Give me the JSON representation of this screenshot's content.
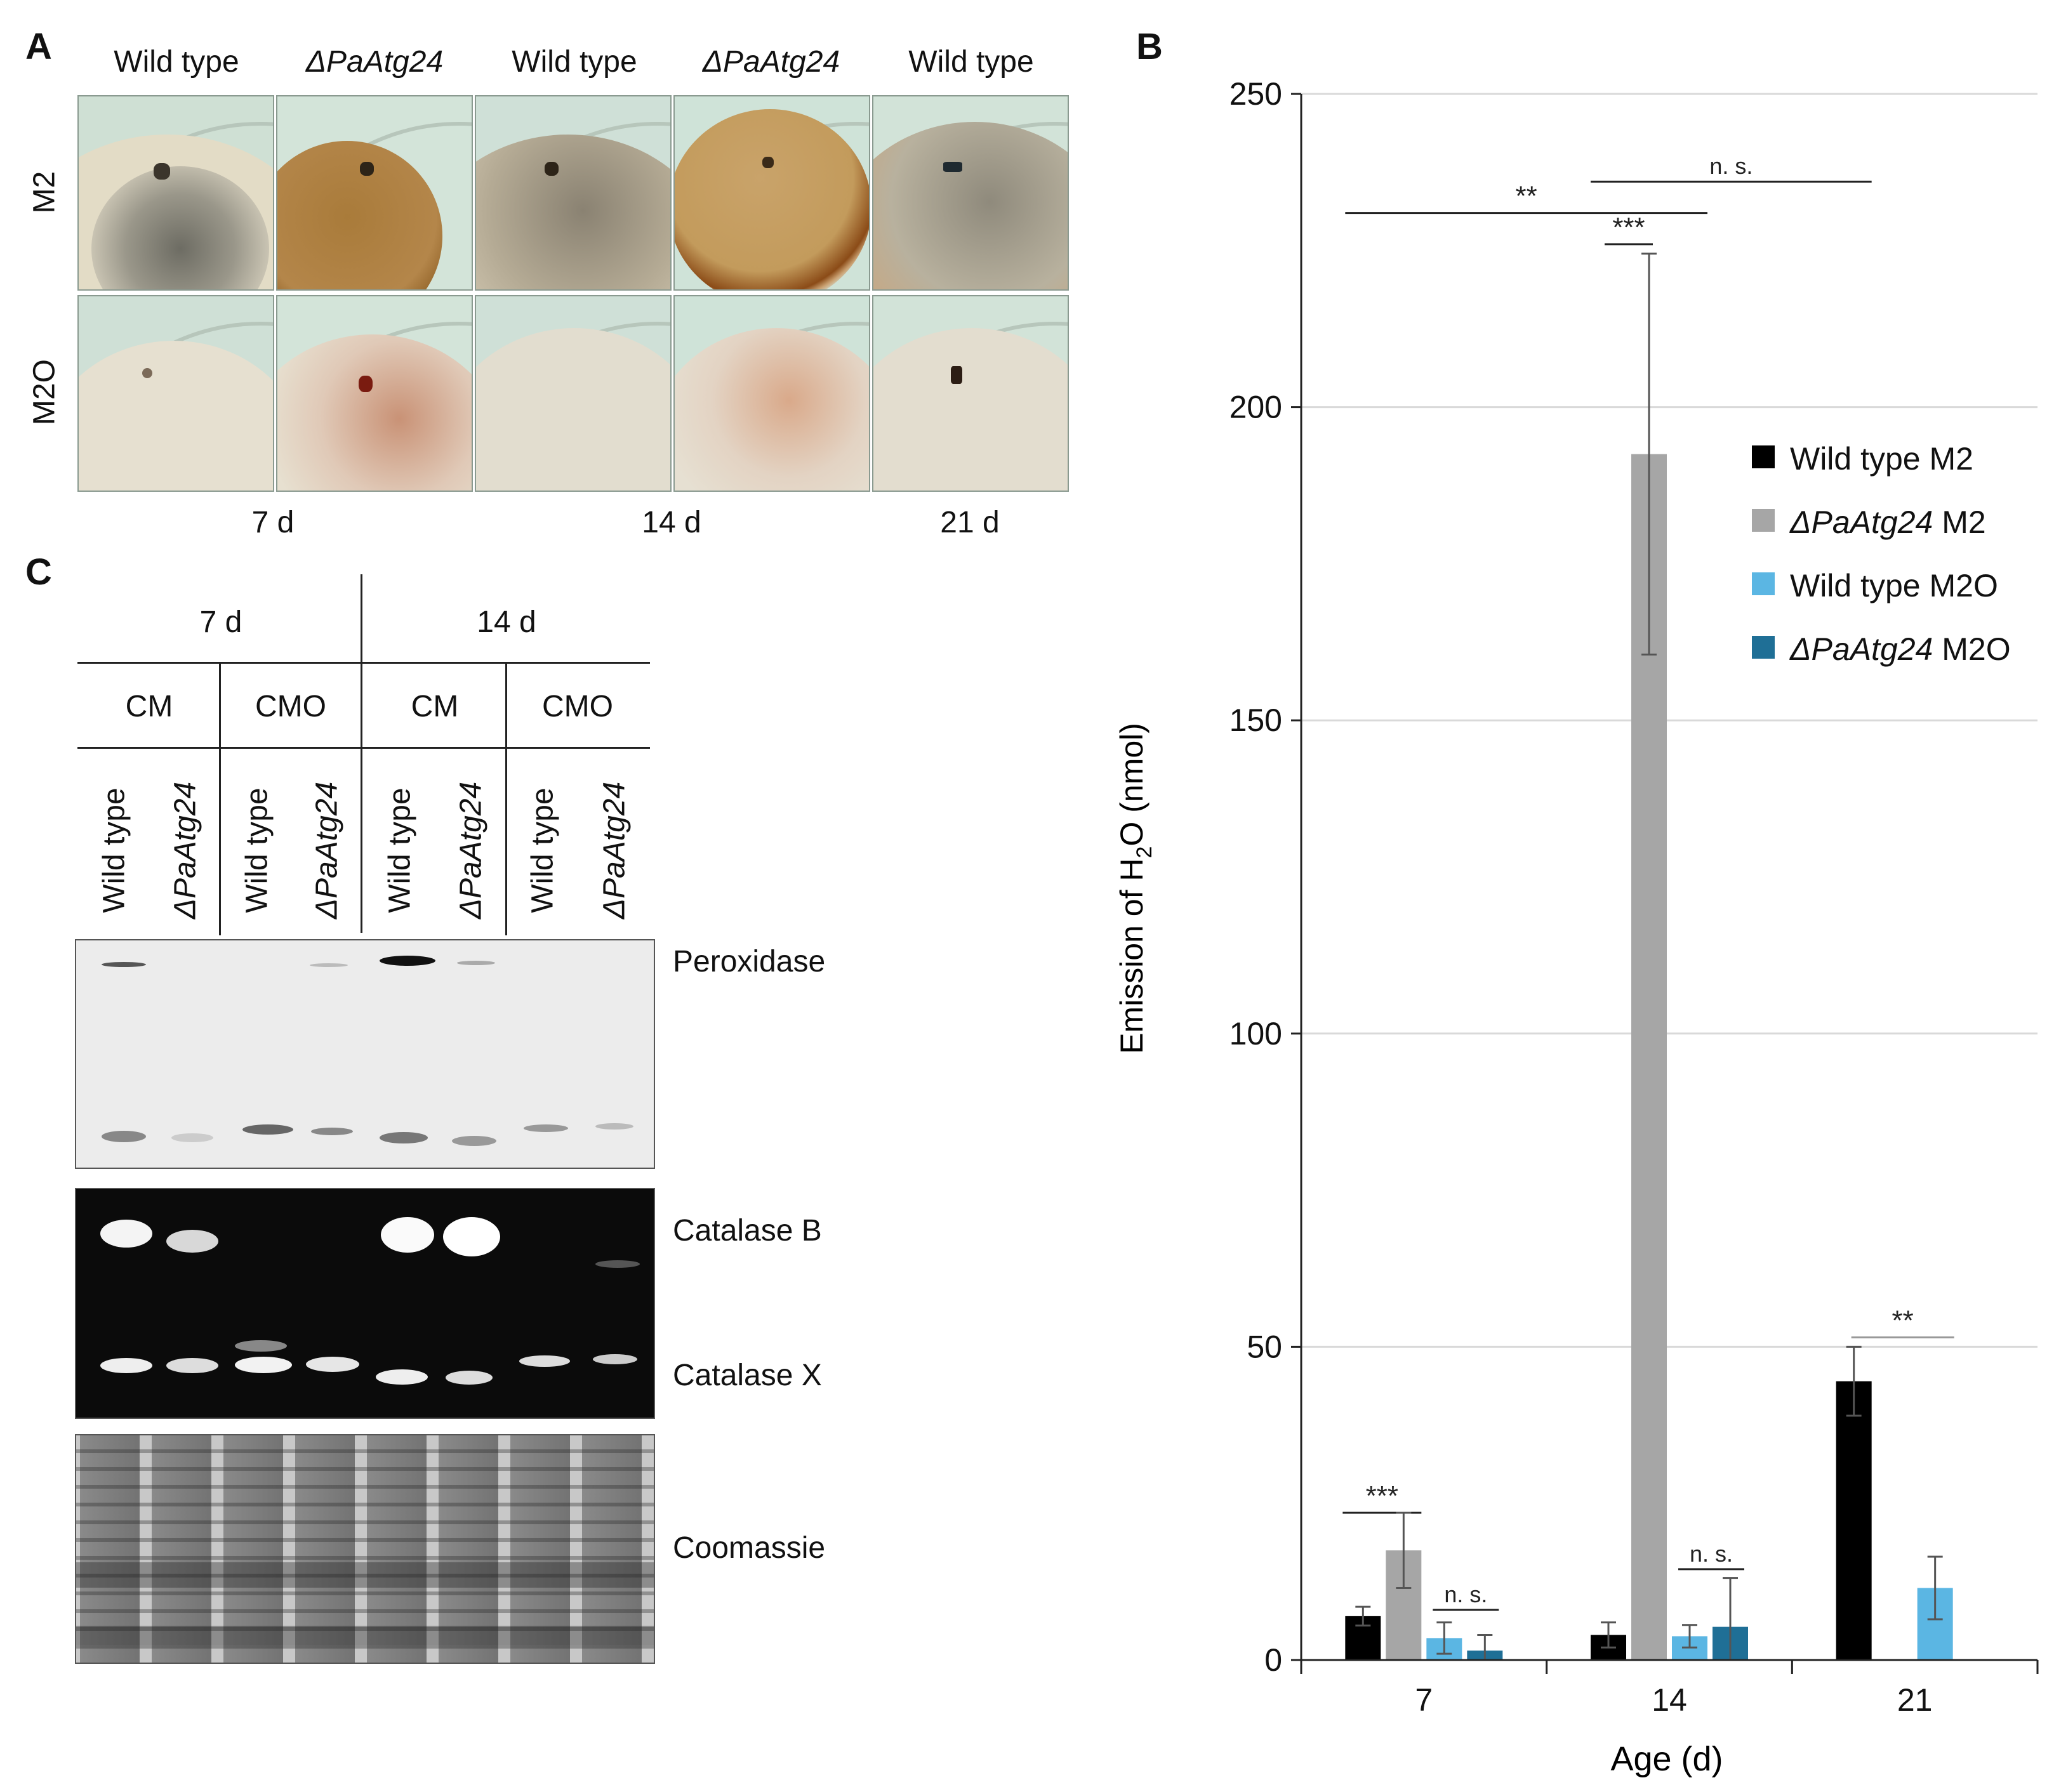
{
  "panel_labels": {
    "a": "A",
    "b": "B",
    "c": "C"
  },
  "panel_a": {
    "column_headers": [
      "Wild type",
      "ΔPaAtg24",
      "Wild type",
      "ΔPaAtg24",
      "Wild type"
    ],
    "row_labels": [
      "M2",
      "M2O"
    ],
    "time_labels": [
      "7 d",
      "14 d",
      "21 d"
    ]
  },
  "panel_c": {
    "time_headers": [
      "7 d",
      "14 d"
    ],
    "medium_headers": [
      "CM",
      "CMO",
      "CM",
      "CMO"
    ],
    "lanes": [
      "Wild type",
      "ΔPaAtg24",
      "Wild type",
      "ΔPaAtg24",
      "Wild type",
      "ΔPaAtg24",
      "Wild type",
      "ΔPaAtg24"
    ],
    "gel_labels": {
      "peroxidase": "Peroxidase",
      "catalase_b": "Catalase B",
      "catalase_x": "Catalase X",
      "coomassie": "Coomassie"
    }
  },
  "colors": {
    "wt_m2": "#000000",
    "ko_m2": "#a6a6a6",
    "wt_m2o": "#5bb6e3",
    "ko_m2o": "#1f6f96"
  },
  "chart_data": {
    "type": "bar",
    "title": "",
    "xlabel": "Age (d)",
    "ylabel_prefix": "Emission of H",
    "ylabel_sub": "2",
    "ylabel_mid": "O",
    "ylabel_suffix": " (nmol)",
    "ylim": [
      0,
      250
    ],
    "yticks": [
      0,
      50,
      100,
      150,
      200,
      250
    ],
    "categories": [
      "7",
      "14",
      "21"
    ],
    "grid": true,
    "legend_position": "right",
    "series": [
      {
        "name": "Wild type M2",
        "name_italic": "",
        "name_rest": "Wild type M2",
        "color": "#000000",
        "values": [
          7,
          4,
          44.5
        ],
        "errors": [
          1.5,
          2,
          5.5
        ]
      },
      {
        "name": "ΔPaAtg24 M2",
        "name_italic": "ΔPaAtg24",
        "name_rest": " M2",
        "color": "#a6a6a6",
        "values": [
          17.5,
          192.5,
          null
        ],
        "errors": [
          6,
          32,
          null
        ]
      },
      {
        "name": "Wild type M2O",
        "name_italic": "",
        "name_rest": "Wild type M2O",
        "color": "#5bb6e3",
        "values": [
          3.5,
          3.8,
          11.5
        ],
        "errors": [
          2.5,
          1.8,
          5
        ]
      },
      {
        "name": "ΔPaAtg24 M2O",
        "name_italic": "ΔPaAtg24",
        "name_rest": " M2O",
        "color": "#1f6f96",
        "values": [
          1.5,
          5.3,
          null
        ],
        "errors": [
          2.5,
          7.8,
          null
        ]
      }
    ],
    "annotations": [
      {
        "text": "n. s.",
        "y": 236,
        "x_from": "14",
        "x_to": "21"
      },
      {
        "text": "**",
        "y": 231,
        "x_from": "7",
        "x_to": "14"
      },
      {
        "text": "***",
        "y": 226,
        "x_from": "14",
        "x_to": "14"
      },
      {
        "text": "***",
        "y": 23.5,
        "x_from": "7",
        "x_to": "7"
      },
      {
        "text": "n. s.",
        "y": 8,
        "x_from": "7",
        "x_to": "7"
      },
      {
        "text": "n. s.",
        "y": 14.5,
        "x_from": "14",
        "x_to": "14"
      },
      {
        "text": "**",
        "y": 51.5,
        "x_from": "21",
        "x_to": "21"
      }
    ]
  }
}
